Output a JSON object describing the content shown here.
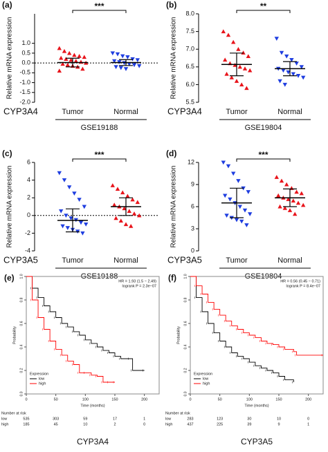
{
  "chart_data": [
    {
      "type": "dotplot",
      "label": "(a)",
      "ylabel": "Relative mRNA expression",
      "gene": "CYP3A4",
      "dataset": "GSE19188",
      "significance": "***",
      "categories": [
        "Tumor",
        "Normal"
      ],
      "ylim": [
        -2,
        2.5
      ],
      "yticks": [
        {
          "value": -2,
          "label": "-2.0"
        },
        {
          "value": -1.5,
          "label": "-1.5"
        },
        {
          "value": -1,
          "label": "-1.0"
        },
        {
          "value": -0.5,
          "label": "-0.5"
        },
        {
          "value": 0,
          "label": "0.0"
        },
        {
          "value": 0.5,
          "label": "0.5"
        },
        {
          "value": 1,
          "label": "1.0"
        }
      ],
      "refline": 0,
      "groups": [
        {
          "color": "#e8141b",
          "marker": "triangle-up",
          "values": [
            0.75,
            0.6,
            0.5,
            0.4,
            0.35,
            0.3,
            0.25,
            0.2,
            0.15,
            0.1,
            0.05,
            0,
            -0.05,
            -0.1,
            -0.15,
            -0.2,
            -0.3,
            -0.4
          ],
          "mean": 0.02,
          "sd": 0.22
        },
        {
          "color": "#1f3ee0",
          "marker": "triangle-down",
          "values": [
            0.5,
            0.45,
            0.35,
            0.3,
            0.2,
            0.15,
            0.1,
            0.05,
            0,
            -0.05,
            -0.1,
            -0.15,
            -0.2,
            -0.25,
            -0.3
          ],
          "mean": 0.02,
          "sd": 0.15
        }
      ]
    },
    {
      "type": "dotplot",
      "label": "(b)",
      "ylabel": "Relative mRNA expression",
      "gene": "CYP3A4",
      "dataset": "GSE19804",
      "significance": "**",
      "categories": [
        "Tumor",
        "Normal"
      ],
      "ylim": [
        5.5,
        8
      ],
      "yticks": [
        5.5,
        {
          "value": 6,
          "label": "6.0"
        },
        6.5,
        {
          "value": 7,
          "label": "7.0"
        },
        7.5,
        {
          "value": 8,
          "label": "8.0"
        }
      ],
      "groups": [
        {
          "color": "#e8141b",
          "marker": "triangle-up",
          "values": [
            7.5,
            7.4,
            7.2,
            7.0,
            6.9,
            6.8,
            6.7,
            6.6,
            6.55,
            6.5,
            6.45,
            6.4,
            6.3,
            6.2,
            6.1,
            6.0,
            5.9
          ],
          "mean": 6.57,
          "sd": 0.32
        },
        {
          "color": "#1f3ee0",
          "marker": "triangle-down",
          "values": [
            7.3,
            6.9,
            6.8,
            6.7,
            6.6,
            6.5,
            6.45,
            6.4,
            6.35,
            6.3,
            6.25,
            6.2,
            6.1,
            6.0
          ],
          "mean": 6.45,
          "sd": 0.2
        }
      ]
    },
    {
      "type": "dotplot",
      "label": "(c)",
      "ylabel": "Relative mRNA expression",
      "gene": "CYP3A5",
      "dataset": "GSE19188",
      "significance": "***",
      "categories": [
        "Tumor",
        "Normal"
      ],
      "ylim": [
        -4,
        6
      ],
      "yticks": [
        -4,
        -2,
        0,
        2,
        4,
        6
      ],
      "refline": 0,
      "groups": [
        {
          "color": "#1f3ee0",
          "marker": "triangle-down",
          "values": [
            4.8,
            4.0,
            3.2,
            2.5,
            1.8,
            1.0,
            0.5,
            0,
            -0.3,
            -0.5,
            -0.8,
            -1.0,
            -1.2,
            -1.4,
            -1.6,
            -1.8,
            -2.0
          ],
          "mean": -0.55,
          "sd": 1.3
        },
        {
          "color": "#e8141b",
          "marker": "triangle-up",
          "values": [
            3.4,
            3.0,
            2.6,
            2.2,
            1.8,
            1.5,
            1.2,
            1.0,
            0.8,
            0.5,
            0.2,
            0,
            -0.3,
            -0.6,
            -1.0,
            -1.2
          ],
          "mean": 1.0,
          "sd": 1.0
        }
      ]
    },
    {
      "type": "dotplot",
      "label": "(d)",
      "ylabel": "Relative mRNA expression",
      "gene": "CYP3A5",
      "dataset": "GSE19804",
      "significance": "***",
      "categories": [
        "Tumor",
        "Normal"
      ],
      "ylim": [
        0,
        12
      ],
      "yticks": [
        0,
        3,
        6,
        9,
        12
      ],
      "groups": [
        {
          "color": "#1f3ee0",
          "marker": "triangle-down",
          "values": [
            12,
            11.5,
            10.5,
            9.5,
            8.5,
            8,
            7.5,
            7,
            6.5,
            6,
            5.5,
            5,
            4.8,
            4.5,
            4.2,
            4,
            3.5
          ],
          "mean": 6.5,
          "sd": 2.0
        },
        {
          "color": "#e8141b",
          "marker": "triangle-up",
          "values": [
            10,
            9.5,
            9,
            8.5,
            8,
            7.8,
            7.5,
            7.2,
            7,
            6.8,
            6.5,
            6.2,
            6,
            5.8,
            5.5,
            5
          ],
          "mean": 7.2,
          "sd": 1.2
        }
      ]
    },
    {
      "type": "km",
      "label": "(e)",
      "title": "CYP3A4",
      "xlabel": "Time (months)",
      "ylabel": "Probability",
      "hr": "HR = 1.93 (1.5 − 2.49)",
      "pvalue": "logrank P = 2.3e−07",
      "legend_title": "Expression",
      "x": [
        0,
        10,
        20,
        30,
        40,
        50,
        60,
        70,
        80,
        90,
        100,
        110,
        120,
        130,
        140,
        150,
        160,
        175,
        180,
        200
      ],
      "xlim": [
        0,
        225
      ],
      "xticks": [
        0,
        50,
        100,
        150,
        200
      ],
      "ylim": [
        0,
        1
      ],
      "yticks": [
        {
          "value": 0,
          "label": "0.0"
        },
        0.2,
        0.4,
        0.6,
        0.8,
        {
          "value": 1,
          "label": "1.0"
        }
      ],
      "series": [
        {
          "name": "low",
          "color": "#000000",
          "values": [
            1,
            0.9,
            0.82,
            0.75,
            0.7,
            0.65,
            0.6,
            0.57,
            0.53,
            0.5,
            0.46,
            0.43,
            0.4,
            0.37,
            0.35,
            0.32,
            0.3,
            0.3,
            0.2,
            0.2
          ]
        },
        {
          "name": "high",
          "color": "#ff0000",
          "values": [
            1,
            0.8,
            0.65,
            0.55,
            0.45,
            0.38,
            0.33,
            0.28,
            0.25,
            0.18,
            0.18,
            0.16,
            0.15,
            0.1,
            0.1,
            0.1,
            null,
            null,
            null,
            null
          ]
        }
      ],
      "risk_title": "Number at risk",
      "risk": [
        [
          535,
          303,
          59,
          17,
          1
        ],
        [
          185,
          45,
          10,
          2,
          0
        ]
      ]
    },
    {
      "type": "km",
      "label": "(f)",
      "title": "CYP3A5",
      "xlabel": "Time (months)",
      "ylabel": "Probability",
      "hr": "HR = 0.56 (0.45 − 0.71)",
      "pvalue": "logrank P = 8.4e−07",
      "legend_title": "Expression",
      "x": [
        0,
        10,
        20,
        30,
        40,
        50,
        60,
        70,
        80,
        90,
        100,
        110,
        120,
        130,
        140,
        150,
        160,
        175,
        180,
        225
      ],
      "xlim": [
        0,
        225
      ],
      "xticks": [
        0,
        50,
        100,
        150,
        200
      ],
      "ylim": [
        0,
        1
      ],
      "yticks": [
        {
          "value": 0,
          "label": "0.0"
        },
        0.2,
        0.4,
        0.6,
        0.8,
        {
          "value": 1,
          "label": "1.0"
        }
      ],
      "series": [
        {
          "name": "low",
          "color": "#000000",
          "values": [
            1,
            0.82,
            0.7,
            0.6,
            0.52,
            0.45,
            0.4,
            0.35,
            0.32,
            0.3,
            0.27,
            0.24,
            0.22,
            0.2,
            0.18,
            0.15,
            0.12,
            0.1,
            null,
            null
          ]
        },
        {
          "name": "high",
          "color": "#ff0000",
          "values": [
            1,
            0.92,
            0.85,
            0.78,
            0.72,
            0.67,
            0.62,
            0.58,
            0.55,
            0.52,
            0.5,
            0.48,
            0.45,
            0.43,
            0.42,
            0.4,
            0.38,
            0.36,
            0.33,
            0.33
          ]
        }
      ],
      "risk_title": "Number at risk",
      "risk": [
        [
          283,
          123,
          30,
          10,
          0
        ],
        [
          437,
          225,
          39,
          9,
          1
        ]
      ]
    }
  ]
}
